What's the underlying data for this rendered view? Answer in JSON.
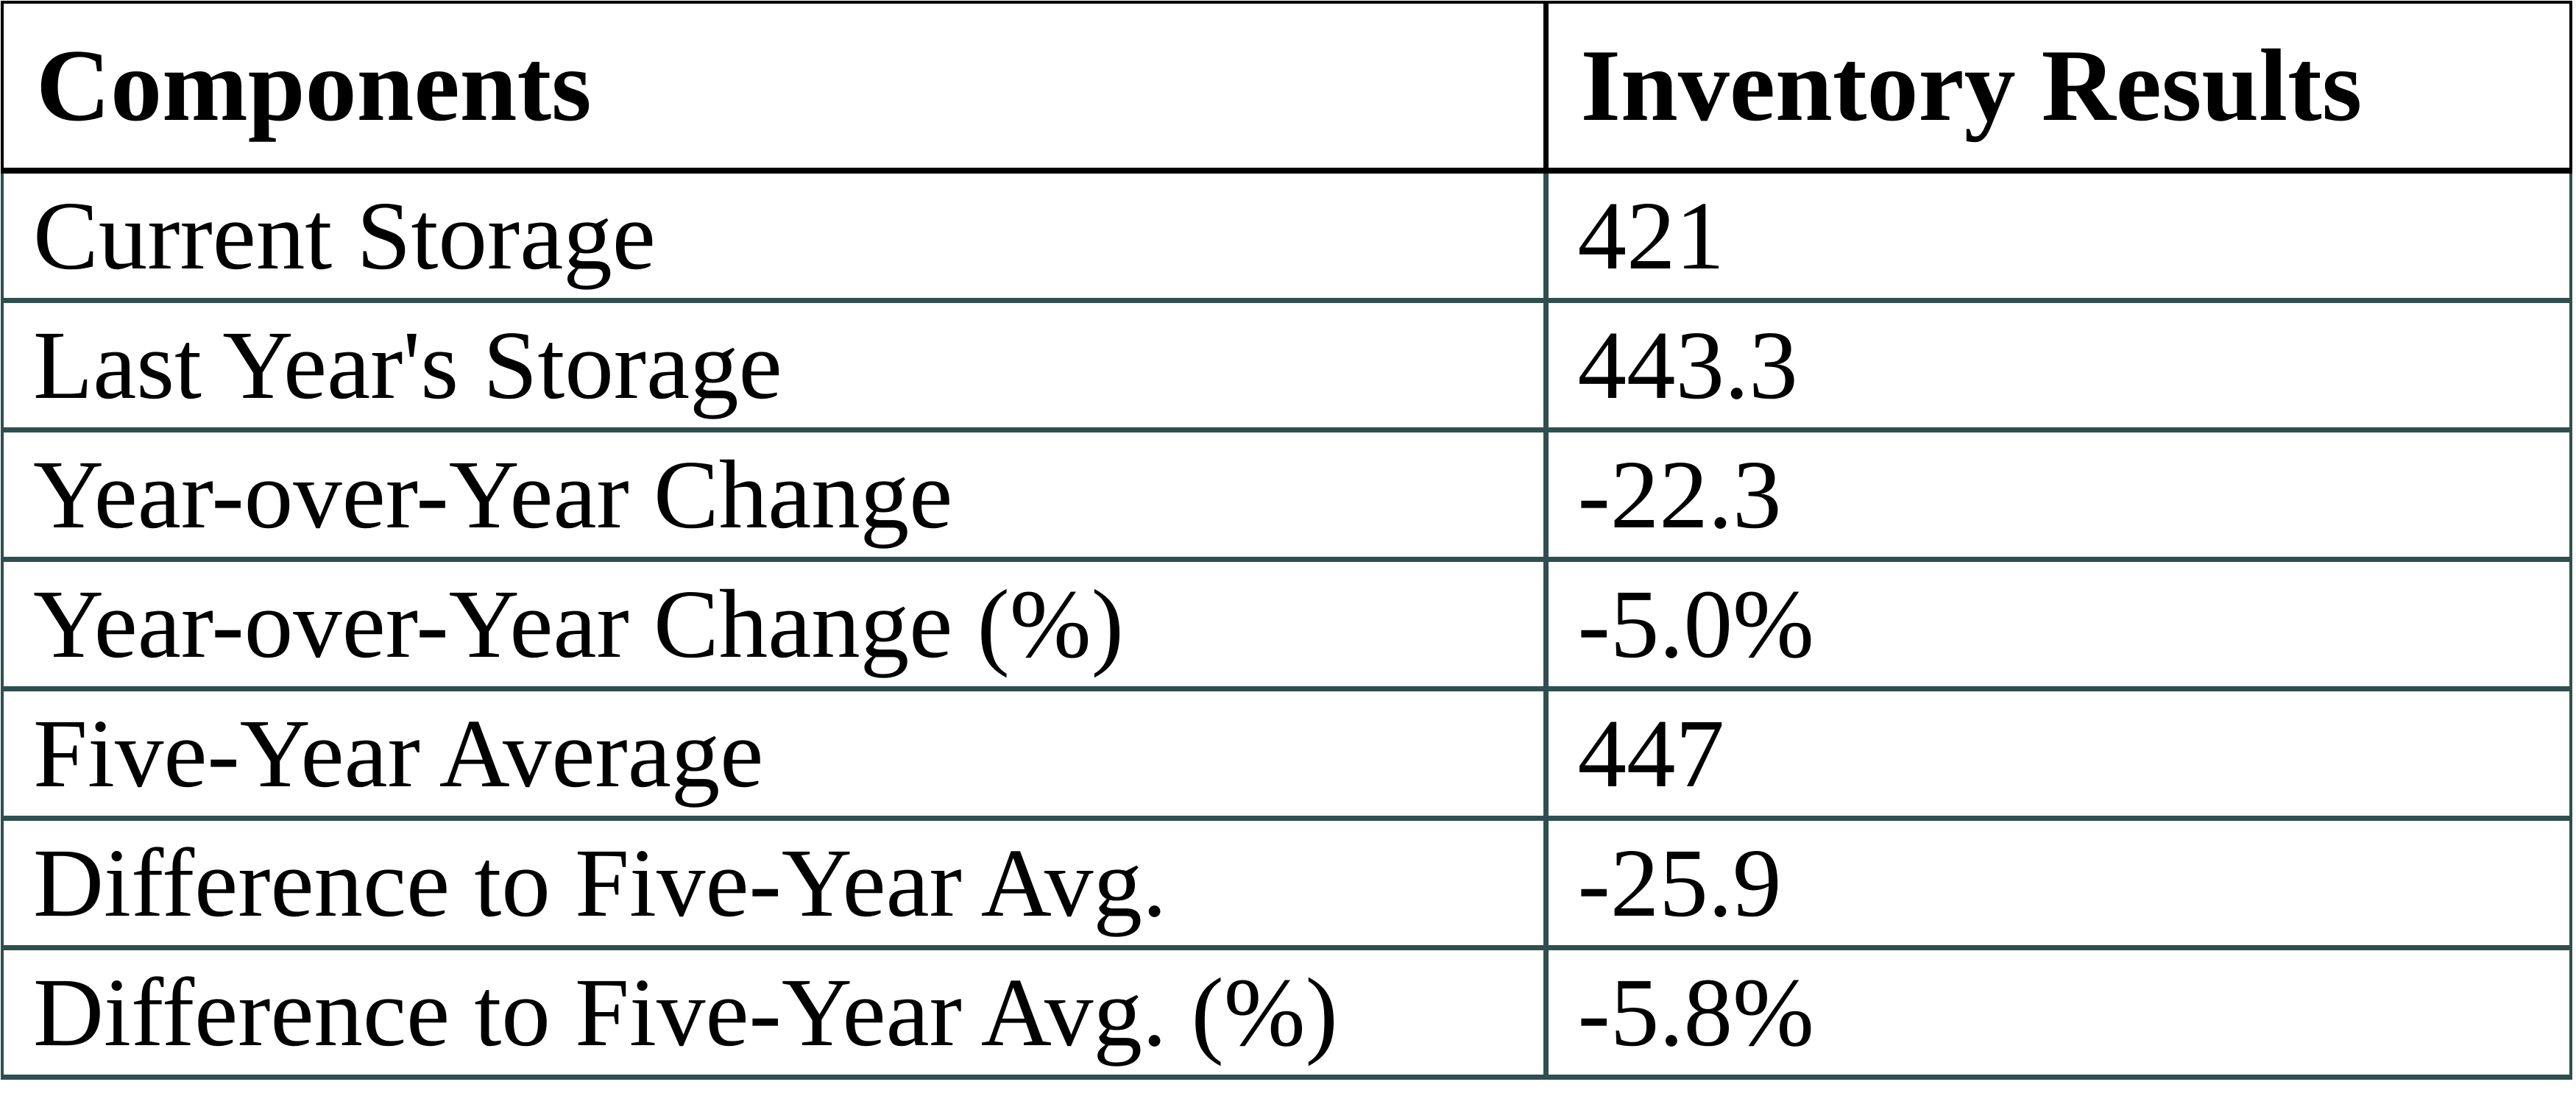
{
  "colors": {
    "background": "#FFFFFF",
    "text": "#000000",
    "header_border": "#000000",
    "body_border": "#2F4F4F"
  },
  "table": {
    "columns": [
      "Components",
      "Inventory Results"
    ],
    "rows": [
      {
        "component": "Current Storage",
        "value": "421"
      },
      {
        "component": "Last Year's Storage",
        "value": "443.3"
      },
      {
        "component": "Year-over-Year Change",
        "value": "-22.3"
      },
      {
        "component": "Year-over-Year Change (%)",
        "value": "-5.0%"
      },
      {
        "component": "Five-Year Average",
        "value": "447"
      },
      {
        "component": "Difference to Five-Year Avg.",
        "value": "-25.9"
      },
      {
        "component": "Difference to Five-Year Avg. (%)",
        "value": "-5.8%"
      }
    ]
  },
  "chart_data": {
    "type": "table",
    "title": "",
    "columns": [
      "Components",
      "Inventory Results"
    ],
    "rows": [
      [
        "Current Storage",
        421
      ],
      [
        "Last Year's Storage",
        443.3
      ],
      [
        "Year-over-Year Change",
        -22.3
      ],
      [
        "Year-over-Year Change (%)",
        "-5.0%"
      ],
      [
        "Five-Year Average",
        447
      ],
      [
        "Difference to Five-Year Avg.",
        -25.9
      ],
      [
        "Difference to Five-Year Avg. (%)",
        "-5.8%"
      ]
    ]
  }
}
